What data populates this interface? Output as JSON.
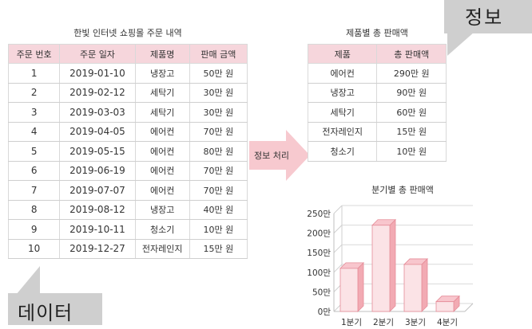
{
  "left_table": {
    "title": "한빛 인터넷 쇼핑몰 주문 내역",
    "headers": [
      "주문 번호",
      "주문 일자",
      "제품명",
      "판매 금액"
    ],
    "rows": [
      [
        "1",
        "2019-01-10",
        "냉장고",
        "50만 원"
      ],
      [
        "2",
        "2019-02-12",
        "세탁기",
        "30만 원"
      ],
      [
        "3",
        "2019-03-03",
        "세탁기",
        "30만 원"
      ],
      [
        "4",
        "2019-04-05",
        "에어컨",
        "70만 원"
      ],
      [
        "5",
        "2019-05-15",
        "에어컨",
        "80만 원"
      ],
      [
        "6",
        "2019-06-19",
        "에어컨",
        "70만 원"
      ],
      [
        "7",
        "2019-07-07",
        "에어컨",
        "70만 원"
      ],
      [
        "8",
        "2019-08-12",
        "냉장고",
        "40만 원"
      ],
      [
        "9",
        "2019-10-11",
        "청소기",
        "10만 원"
      ],
      [
        "10",
        "2019-12-27",
        "전자레인지",
        "15만 원"
      ]
    ]
  },
  "right_table": {
    "title": "제품별 총 판매액",
    "headers": [
      "제품",
      "총 판매액"
    ],
    "rows": [
      [
        "에어컨",
        "290만 원"
      ],
      [
        "냉장고",
        "90만 원"
      ],
      [
        "세탁기",
        "60만 원"
      ],
      [
        "전자레인지",
        "15만 원"
      ],
      [
        "청소기",
        "10만 원"
      ]
    ]
  },
  "arrow": {
    "label": "정보 처리"
  },
  "callouts": {
    "info": "정보",
    "data": "데이터"
  },
  "colors": {
    "header_pink": "#f6d6dc",
    "arrow_pink": "#f7c9cf",
    "bar_front": "#fbe3e6",
    "bar_side": "#f2aab3",
    "callout_gray": "#cfcfcf"
  },
  "chart_data": {
    "type": "bar",
    "title": "분기별 총 판매액",
    "categories": [
      "1분기",
      "2분기",
      "3분기",
      "4분기"
    ],
    "values": [
      110,
      220,
      120,
      25
    ],
    "ytick_labels": [
      "0만",
      "50만",
      "100만",
      "150만",
      "200만",
      "250만"
    ],
    "yticks": [
      0,
      50,
      100,
      150,
      200,
      250
    ],
    "ylim": [
      0,
      250
    ],
    "grid": true,
    "style": "3d"
  }
}
